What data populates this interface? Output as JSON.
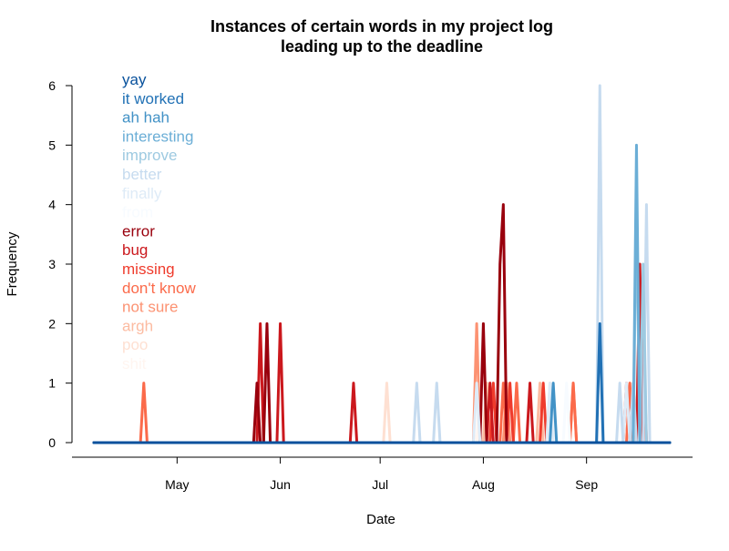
{
  "chart_data": {
    "type": "line",
    "title": [
      "Instances of certain words in my project log",
      "leading up to the deadline"
    ],
    "xlabel": "Date",
    "ylabel": "Frequency",
    "x_tick_labels": [
      "May",
      "Jun",
      "Jul",
      "Aug",
      "Sep"
    ],
    "x_tick_dates": [
      "2015-05-01",
      "2015-06-01",
      "2015-07-01",
      "2015-08-01",
      "2015-09-01"
    ],
    "xlim": [
      "2015-04-06",
      "2015-09-26"
    ],
    "ylim": [
      0,
      6
    ],
    "y_ticks": [
      0,
      1,
      2,
      3,
      4,
      5,
      6
    ],
    "grid": false,
    "legend_placement": "top-left",
    "series": [
      {
        "name": "yay",
        "color": "#08519c",
        "points": []
      },
      {
        "name": "it worked",
        "color": "#2171b5",
        "points": [
          {
            "x": "2015-09-05",
            "y": 2
          }
        ]
      },
      {
        "name": "ah hah",
        "color": "#4292c6",
        "points": [
          {
            "x": "2015-08-22",
            "y": 1
          }
        ]
      },
      {
        "name": "interesting",
        "color": "#6baed6",
        "points": [
          {
            "x": "2015-09-16",
            "y": 5
          }
        ]
      },
      {
        "name": "improve",
        "color": "#9ecae1",
        "points": [
          {
            "x": "2015-09-16",
            "y": 4
          },
          {
            "x": "2015-09-18",
            "y": 3
          }
        ]
      },
      {
        "name": "better",
        "color": "#c6dbef",
        "points": [
          {
            "x": "2015-07-12",
            "y": 1
          },
          {
            "x": "2015-07-18",
            "y": 1
          },
          {
            "x": "2015-09-05",
            "y": 6
          },
          {
            "x": "2015-09-11",
            "y": 1
          },
          {
            "x": "2015-09-15",
            "y": 1
          },
          {
            "x": "2015-09-19",
            "y": 4
          }
        ]
      },
      {
        "name": "finally",
        "color": "#deebf7",
        "points": [
          {
            "x": "2015-07-30",
            "y": 1
          },
          {
            "x": "2015-08-21",
            "y": 1
          },
          {
            "x": "2015-09-13",
            "y": 1
          }
        ]
      },
      {
        "name": "from",
        "color": "#f7fbff",
        "points": [
          {
            "x": "2015-08-26",
            "y": 1
          }
        ]
      },
      {
        "name": "error",
        "color": "#99000d",
        "points": [
          {
            "x": "2015-05-25",
            "y": 1
          },
          {
            "x": "2015-05-28",
            "y": 2
          },
          {
            "x": "2015-08-01",
            "y": 2
          },
          {
            "x": "2015-08-06",
            "y": 3
          },
          {
            "x": "2015-08-07",
            "y": 4
          }
        ]
      },
      {
        "name": "bug",
        "color": "#cb181d",
        "points": [
          {
            "x": "2015-05-26",
            "y": 2
          },
          {
            "x": "2015-06-01",
            "y": 2
          },
          {
            "x": "2015-06-23",
            "y": 1
          },
          {
            "x": "2015-08-03",
            "y": 1
          },
          {
            "x": "2015-08-15",
            "y": 1
          },
          {
            "x": "2015-09-17",
            "y": 3
          }
        ]
      },
      {
        "name": "missing",
        "color": "#ef3b2c",
        "points": [
          {
            "x": "2015-08-04",
            "y": 1
          },
          {
            "x": "2015-08-09",
            "y": 1
          },
          {
            "x": "2015-08-19",
            "y": 1
          },
          {
            "x": "2015-09-13",
            "y": 1
          },
          {
            "x": "2015-09-18",
            "y": 2
          }
        ]
      },
      {
        "name": "don't know",
        "color": "#fb6a4a",
        "points": [
          {
            "x": "2015-04-21",
            "y": 1
          },
          {
            "x": "2015-08-07",
            "y": 1
          },
          {
            "x": "2015-08-11",
            "y": 1
          },
          {
            "x": "2015-08-28",
            "y": 1
          },
          {
            "x": "2015-09-14",
            "y": 1
          }
        ]
      },
      {
        "name": "not sure",
        "color": "#fc9272",
        "points": [
          {
            "x": "2015-07-30",
            "y": 2
          },
          {
            "x": "2015-08-08",
            "y": 1
          },
          {
            "x": "2015-08-28",
            "y": 1
          },
          {
            "x": "2015-09-15",
            "y": 1
          }
        ]
      },
      {
        "name": "argh",
        "color": "#fcbba1",
        "points": [
          {
            "x": "2015-08-02",
            "y": 1
          },
          {
            "x": "2015-08-18",
            "y": 1
          }
        ]
      },
      {
        "name": "poo",
        "color": "#fee0d2",
        "points": [
          {
            "x": "2015-07-03",
            "y": 1
          },
          {
            "x": "2015-08-21",
            "y": 1
          }
        ]
      },
      {
        "name": "shit",
        "color": "#fff5f0",
        "points": [
          {
            "x": "2015-07-31",
            "y": 1
          }
        ]
      }
    ]
  }
}
